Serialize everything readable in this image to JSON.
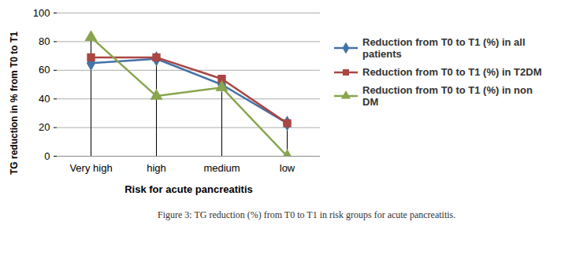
{
  "chart_data": {
    "type": "line",
    "caption": "Figure 3: TG reduction (%) from T0 to T1 in risk groups for acute pancreatitis.",
    "x_label": "Risk for acute pancreatitis",
    "y_label": "TG reduction in % from T0 to T1",
    "categories": [
      "Very high",
      "high",
      "medium",
      "low"
    ],
    "series": [
      {
        "name": "Reduction from T0 to T1 (%) in all patients",
        "color": "#4572a7",
        "marker": "diamond",
        "values": [
          65,
          68,
          50,
          23
        ]
      },
      {
        "name": "Reduction from T0 to T1 (%) in T2DM",
        "color": "#aa4643",
        "marker": "square",
        "values": [
          69,
          69,
          54,
          23
        ]
      },
      {
        "name": "Reduction from T0 to T1 (%) in non DM",
        "color": "#89a54e",
        "marker": "triangle",
        "values": [
          83,
          42,
          48,
          0
        ]
      }
    ],
    "ylim": [
      0,
      100
    ],
    "yticks": [
      0,
      20,
      40,
      60,
      80,
      100
    ],
    "grid": true,
    "legend": "right"
  }
}
